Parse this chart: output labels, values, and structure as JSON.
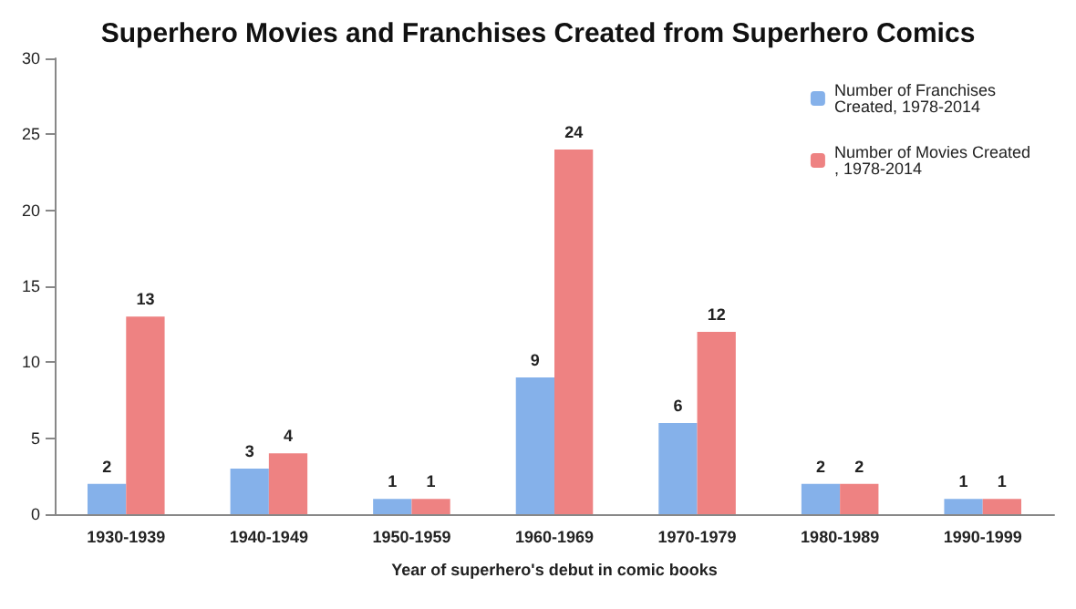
{
  "chart_data": {
    "type": "bar",
    "title": "Superhero Movies and Franchises Created from Superhero Comics",
    "xlabel": "Year of superhero's debut in comic books",
    "categories": [
      "1930-1939",
      "1940-1949",
      "1950-1959",
      "1960-1969",
      "1970-1979",
      "1980-1989",
      "1990-1999"
    ],
    "series": [
      {
        "name": "Number of Franchises Created, 1978-2014",
        "color": "#85b1ea",
        "values": [
          2,
          3,
          1,
          9,
          6,
          2,
          1
        ]
      },
      {
        "name": "Number of Movies Created, 1978-2014",
        "color": "#ee8282",
        "values": [
          13,
          4,
          1,
          24,
          12,
          2,
          1
        ]
      }
    ],
    "ylim": [
      0,
      30
    ],
    "yticks": [
      0,
      5,
      10,
      15,
      20,
      25,
      30
    ],
    "grid": false,
    "legend": "top right",
    "data_labels": true
  }
}
